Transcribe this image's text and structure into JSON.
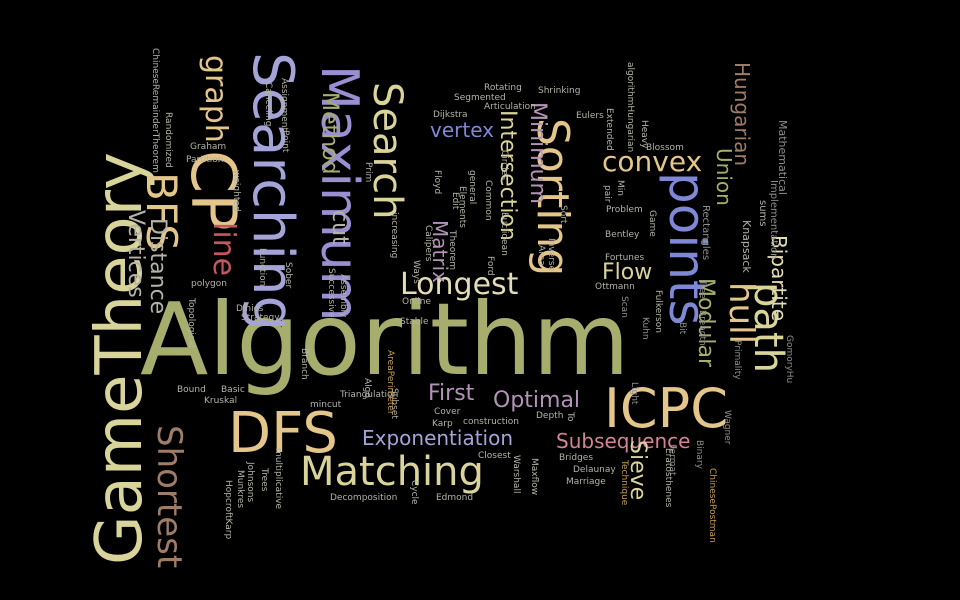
{
  "colors": {
    "background": "#000000",
    "olive": "#a7ad6c",
    "olive_dark": "#8b9157",
    "sand": "#d9d49a",
    "cream": "#e3ddb6",
    "gold": "#e4c58a",
    "gold_deep": "#c99d4e",
    "lavender": "#a5a4d8",
    "violet": "#9a8fd1",
    "blue": "#7f88d6",
    "mauve": "#b493b8",
    "rose": "#d58396",
    "pink": "#e5a0b3",
    "red": "#c2585e",
    "brown": "#9e7c67",
    "grey": "#b4b3a5",
    "dim": "#8f8e88"
  },
  "words": [
    {
      "id": "algorithm",
      "text": "Algorithm",
      "color": "olive"
    },
    {
      "id": "gametheory",
      "text": "GameTheory",
      "color": "sand"
    },
    {
      "id": "searching",
      "text": "Searching",
      "color": "lavender"
    },
    {
      "id": "maximum",
      "text": "Maximum",
      "color": "violet"
    },
    {
      "id": "search",
      "text": "Search",
      "color": "sand"
    },
    {
      "id": "sorting",
      "text": "Sorting",
      "color": "gold"
    },
    {
      "id": "points",
      "text": "points",
      "color": "blue"
    },
    {
      "id": "path",
      "text": "path",
      "color": "sand"
    },
    {
      "id": "hull",
      "text": "hull",
      "color": "gold"
    },
    {
      "id": "icpc",
      "text": "ICPC",
      "color": "gold"
    },
    {
      "id": "dfs",
      "text": "DFS",
      "color": "gold"
    },
    {
      "id": "matching",
      "text": "Matching",
      "color": "sand"
    },
    {
      "id": "cp",
      "text": "CP",
      "color": "gold"
    },
    {
      "id": "bfs",
      "text": "BFS",
      "color": "gold"
    },
    {
      "id": "graph",
      "text": "graph",
      "color": "gold"
    },
    {
      "id": "shortest",
      "text": "Shortest",
      "color": "brown"
    },
    {
      "id": "longest",
      "text": "Longest",
      "color": "cream"
    },
    {
      "id": "convex",
      "text": "convex",
      "color": "gold"
    },
    {
      "id": "exponentiation",
      "text": "Exponentiation",
      "color": "lavender"
    },
    {
      "id": "subsequence",
      "text": "Subsequence",
      "color": "rose"
    },
    {
      "id": "optimal",
      "text": "Optimal",
      "color": "mauve"
    },
    {
      "id": "first",
      "text": "First",
      "color": "mauve"
    },
    {
      "id": "vertex",
      "text": "vertex",
      "color": "blue"
    },
    {
      "id": "minimum",
      "text": "Minimum",
      "color": "mauve"
    },
    {
      "id": "intersection",
      "text": "Intersection",
      "color": "sand"
    },
    {
      "id": "matrix",
      "text": "Matrix",
      "color": "mauve"
    },
    {
      "id": "line",
      "text": "line",
      "color": "red"
    },
    {
      "id": "distance",
      "text": "Distance",
      "color": "grey"
    },
    {
      "id": "vertices",
      "text": "Vertices",
      "color": "grey"
    },
    {
      "id": "method",
      "text": "Method",
      "color": "olive"
    },
    {
      "id": "cut",
      "text": "cut",
      "color": "grey"
    },
    {
      "id": "flow",
      "text": "Flow",
      "color": "sand"
    },
    {
      "id": "union",
      "text": "Union",
      "color": "olive"
    },
    {
      "id": "hungarian",
      "text": "Hungarian",
      "color": "brown"
    },
    {
      "id": "bipartite",
      "text": "Bipartite",
      "color": "cream"
    },
    {
      "id": "modular",
      "text": "Modular",
      "color": "olive"
    },
    {
      "id": "sieve",
      "text": "Sieve",
      "color": "sand"
    },
    {
      "id": "knapsack",
      "text": "Knapsack",
      "color": "grey"
    },
    {
      "id": "mathematical",
      "text": "Mathematical",
      "color": "dim"
    },
    {
      "id": "implementation",
      "text": "Implementation",
      "color": "dim"
    },
    {
      "id": "sums",
      "text": "sums",
      "color": "grey"
    },
    {
      "id": "rectangles",
      "text": "Rectangles",
      "color": "dim"
    },
    {
      "id": "gomoryhu",
      "text": "GomoryHu",
      "color": "dim"
    },
    {
      "id": "primality",
      "text": "Primality",
      "color": "dim"
    },
    {
      "id": "wagner",
      "text": "Wagner",
      "color": "dim"
    },
    {
      "id": "chinesepostman",
      "text": "ChinesePostman",
      "color": "gold_deep"
    },
    {
      "id": "binary",
      "text": "Binary",
      "color": "dim"
    },
    {
      "id": "fermat",
      "text": "Fermat",
      "color": "dim"
    },
    {
      "id": "tree",
      "text": "Tree",
      "color": "dim"
    },
    {
      "id": "breadth",
      "text": "Breadth",
      "color": "dim"
    },
    {
      "id": "bit",
      "text": "Bit",
      "color": "dim"
    },
    {
      "id": "light",
      "text": "Light",
      "color": "dim"
    },
    {
      "id": "kuhn",
      "text": "Kuhn",
      "color": "dim"
    },
    {
      "id": "scan",
      "text": "Scan",
      "color": "dim"
    },
    {
      "id": "technique",
      "text": "Technique",
      "color": "gold_deep"
    },
    {
      "id": "marriage",
      "text": "Marriage",
      "color": "grey"
    },
    {
      "id": "delaunay",
      "text": "Delaunay",
      "color": "grey"
    },
    {
      "id": "bridges",
      "text": "Bridges",
      "color": "grey"
    },
    {
      "id": "maxflow",
      "text": "Maxflow",
      "color": "grey"
    },
    {
      "id": "warshall",
      "text": "Warshall",
      "color": "grey"
    },
    {
      "id": "closest",
      "text": "Closest",
      "color": "grey"
    },
    {
      "id": "edmond",
      "text": "Edmond",
      "color": "grey"
    },
    {
      "id": "cycle",
      "text": "Cycle",
      "color": "grey"
    },
    {
      "id": "decomposition",
      "text": "Decomposition",
      "color": "grey"
    },
    {
      "id": "construction",
      "text": "construction",
      "color": "grey"
    },
    {
      "id": "karp",
      "text": "Karp",
      "color": "grey"
    },
    {
      "id": "cover",
      "text": "Cover",
      "color": "grey"
    },
    {
      "id": "subset",
      "text": "Subset",
      "color": "grey"
    },
    {
      "id": "algo",
      "text": "Algo",
      "color": "grey"
    },
    {
      "id": "triangulation",
      "text": "Triangulation",
      "color": "grey"
    },
    {
      "id": "areaperimeter",
      "text": "AreaPerimeter",
      "color": "gold_deep"
    },
    {
      "id": "mincut",
      "text": "mincut",
      "color": "grey"
    },
    {
      "id": "branch",
      "text": "Branch",
      "color": "grey"
    },
    {
      "id": "bound",
      "text": "Bound",
      "color": "grey"
    },
    {
      "id": "basic",
      "text": "Basic",
      "color": "grey"
    },
    {
      "id": "kruskal",
      "text": "Kruskal",
      "color": "grey"
    },
    {
      "id": "dinics",
      "text": "Dinics",
      "color": "grey"
    },
    {
      "id": "strategy",
      "text": "Strategy",
      "color": "grey"
    },
    {
      "id": "topological",
      "text": "Topological",
      "color": "grey"
    },
    {
      "id": "polygon",
      "text": "polygon",
      "color": "grey"
    },
    {
      "id": "hopcroftkarp",
      "text": "HopcroftKarp",
      "color": "grey"
    },
    {
      "id": "munkres",
      "text": "Munkres",
      "color": "grey"
    },
    {
      "id": "johnsons",
      "text": "Johnsons",
      "color": "grey"
    },
    {
      "id": "trees",
      "text": "Trees",
      "color": "grey"
    },
    {
      "id": "multiplicative",
      "text": "multiplicative",
      "color": "grey"
    },
    {
      "id": "chineseremaindertheorem",
      "text": "ChineseRemainderTheorem",
      "color": "grey"
    },
    {
      "id": "randomized",
      "text": "Randomized",
      "color": "grey"
    },
    {
      "id": "graham",
      "text": "Graham",
      "color": "grey"
    },
    {
      "id": "partition",
      "text": "Partition",
      "color": "grey"
    },
    {
      "id": "weighted",
      "text": "weighted",
      "color": "grey"
    },
    {
      "id": "canceling",
      "text": "Canceling",
      "color": "grey"
    },
    {
      "id": "assignment",
      "text": "Assignment",
      "color": "grey"
    },
    {
      "id": "function",
      "text": "Function",
      "color": "grey"
    },
    {
      "id": "sober",
      "text": "Sober",
      "color": "grey"
    },
    {
      "id": "point",
      "text": "Point",
      "color": "grey"
    },
    {
      "id": "prim",
      "text": "Prim",
      "color": "grey"
    },
    {
      "id": "successive",
      "text": "Successive",
      "color": "grey"
    },
    {
      "id": "assembly",
      "text": "Assembly",
      "color": "grey"
    },
    {
      "id": "increasing",
      "text": "increasing",
      "color": "grey"
    },
    {
      "id": "ways",
      "text": "Ways",
      "color": "grey"
    },
    {
      "id": "online",
      "text": "Online",
      "color": "grey"
    },
    {
      "id": "stable",
      "text": "Stable",
      "color": "grey"
    },
    {
      "id": "floyd",
      "text": "Floyd",
      "color": "grey"
    },
    {
      "id": "calipers",
      "text": "Calipers",
      "color": "grey"
    },
    {
      "id": "segmented",
      "text": "Segmented",
      "color": "grey"
    },
    {
      "id": "rotating",
      "text": "Rotating",
      "color": "grey"
    },
    {
      "id": "dijkstra",
      "text": "Dijkstra",
      "color": "grey"
    },
    {
      "id": "articulation",
      "text": "Articulation",
      "color": "grey"
    },
    {
      "id": "shrinking",
      "text": "Shrinking",
      "color": "grey"
    },
    {
      "id": "ford",
      "text": "Ford",
      "color": "grey"
    },
    {
      "id": "euclidean",
      "text": "Euclidean",
      "color": "grey"
    },
    {
      "id": "general",
      "text": "general",
      "color": "grey"
    },
    {
      "id": "common",
      "text": "Common",
      "color": "grey"
    },
    {
      "id": "circles",
      "text": "Circles",
      "color": "grey"
    },
    {
      "id": "area",
      "text": "Area",
      "color": "grey"
    },
    {
      "id": "inverse",
      "text": "Inverse",
      "color": "grey"
    },
    {
      "id": "sort",
      "text": "Sort",
      "color": "grey"
    },
    {
      "id": "eulers",
      "text": "Eulers",
      "color": "grey"
    },
    {
      "id": "extended",
      "text": "Extended",
      "color": "grey"
    },
    {
      "id": "algorithmhungarian",
      "text": "algorithmHungarian",
      "color": "grey"
    },
    {
      "id": "heavy",
      "text": "Heavy",
      "color": "grey"
    },
    {
      "id": "blossom",
      "text": "Blossom",
      "color": "grey"
    },
    {
      "id": "problem",
      "text": "Problem",
      "color": "grey"
    },
    {
      "id": "game",
      "text": "Game",
      "color": "grey"
    },
    {
      "id": "bentley",
      "text": "Bentley",
      "color": "grey"
    },
    {
      "id": "fortunes",
      "text": "Fortunes",
      "color": "grey"
    },
    {
      "id": "ottmann",
      "text": "Ottmann",
      "color": "grey"
    },
    {
      "id": "fulkerson",
      "text": "Fulkerson",
      "color": "grey"
    },
    {
      "id": "min",
      "text": "Min",
      "color": "grey"
    },
    {
      "id": "pair",
      "text": "pair",
      "color": "grey"
    },
    {
      "id": "depth",
      "text": "Depth",
      "color": "grey"
    },
    {
      "id": "to",
      "text": "To",
      "color": "grey"
    },
    {
      "id": "elements",
      "text": "Elements",
      "color": "grey"
    },
    {
      "id": "edit",
      "text": "Edit",
      "color": "grey"
    },
    {
      "id": "eratosthenes",
      "text": "Eratosthenes",
      "color": "grey"
    },
    {
      "id": "theorem",
      "text": "Theorem",
      "color": "grey"
    }
  ]
}
